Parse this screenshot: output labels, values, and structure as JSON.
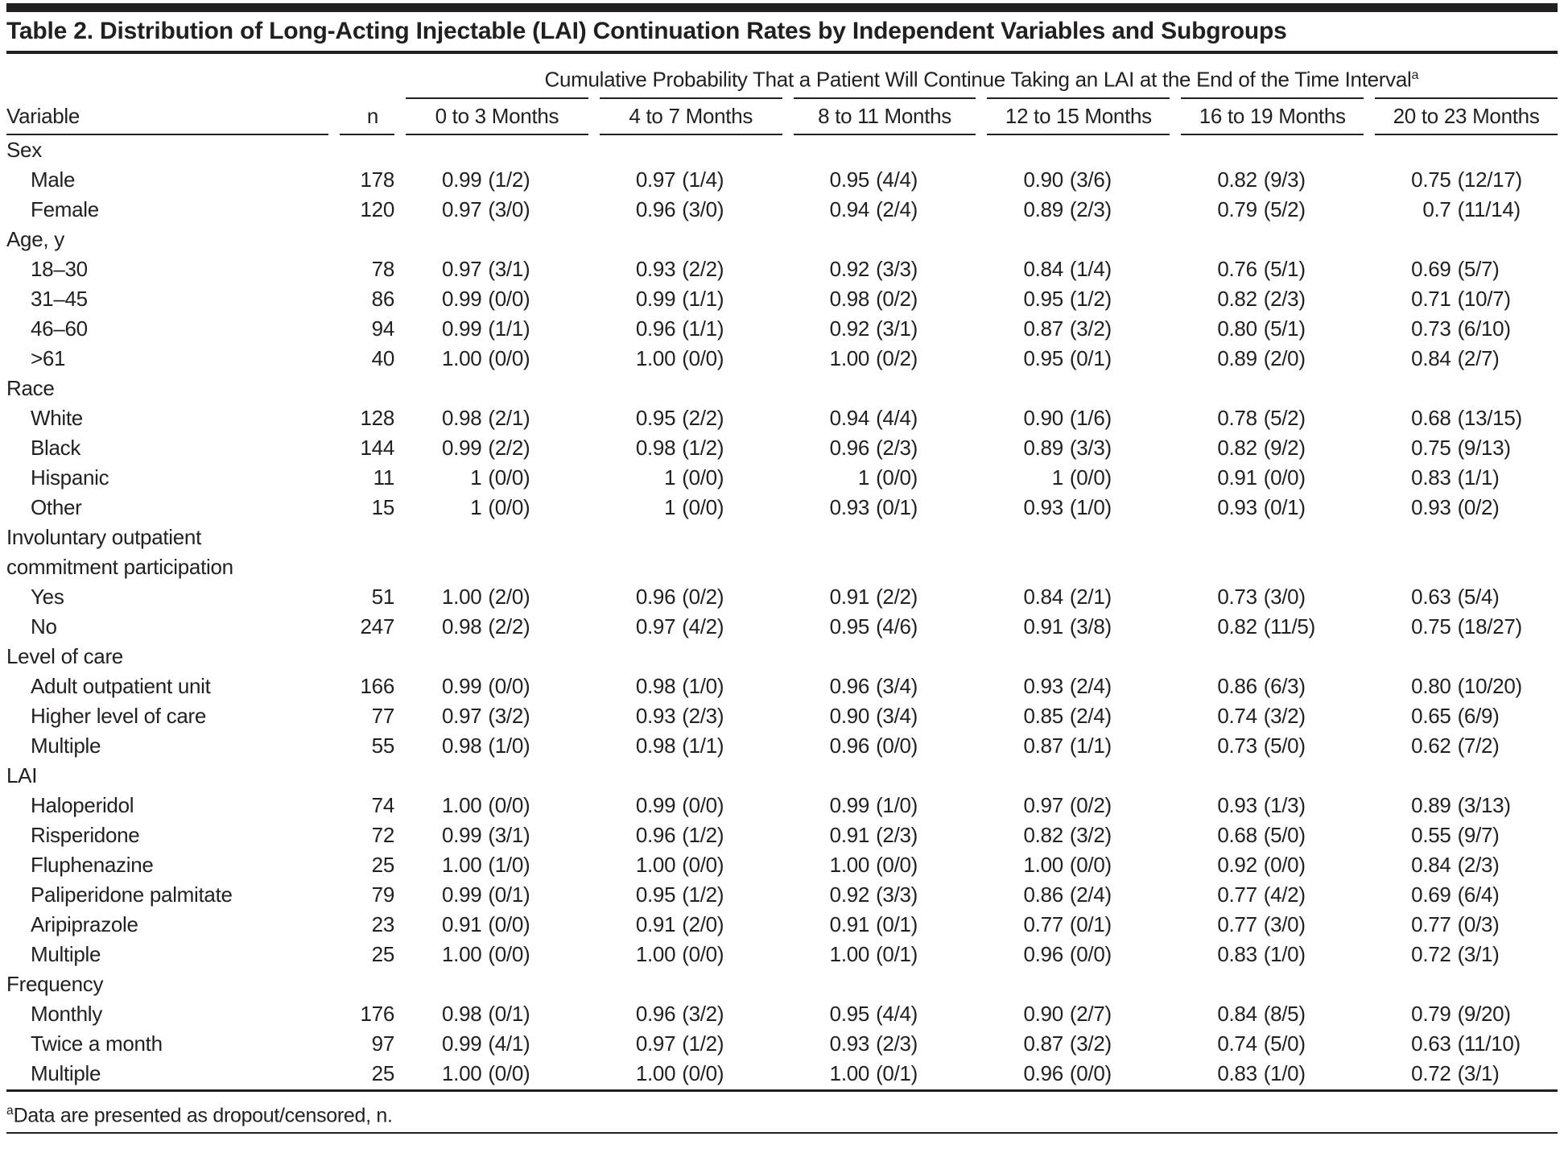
{
  "title": "Table 2. Distribution of Long-Acting Injectable (LAI) Continuation Rates by Independent Variables and Subgroups",
  "spanner": {
    "text": "Cumulative Probability That a Patient Will Continue Taking an LAI at the End of the Time Interval",
    "superscript": "a"
  },
  "columns": {
    "variable": "Variable",
    "n": "n",
    "months": [
      "0 to 3 Months",
      "4 to 7 Months",
      "8 to 11 Months",
      "12 to 15 Months",
      "16 to 19 Months",
      "20 to 23 Months"
    ]
  },
  "sections": [
    {
      "label": "Sex",
      "rows": [
        {
          "label": "Male",
          "n": "178",
          "cells": [
            [
              "0.99",
              "(1/2)"
            ],
            [
              "0.97",
              "(1/4)"
            ],
            [
              "0.95",
              "(4/4)"
            ],
            [
              "0.90",
              "(3/6)"
            ],
            [
              "0.82",
              "(9/3)"
            ],
            [
              "0.75",
              "(12/17)"
            ]
          ]
        },
        {
          "label": "Female",
          "n": "120",
          "cells": [
            [
              "0.97",
              "(3/0)"
            ],
            [
              "0.96",
              "(3/0)"
            ],
            [
              "0.94",
              "(2/4)"
            ],
            [
              "0.89",
              "(2/3)"
            ],
            [
              "0.79",
              "(5/2)"
            ],
            [
              "0.7",
              "(11/14)"
            ]
          ]
        }
      ]
    },
    {
      "label": "Age, y",
      "rows": [
        {
          "label": "18–30",
          "n": "78",
          "cells": [
            [
              "0.97",
              "(3/1)"
            ],
            [
              "0.93",
              "(2/2)"
            ],
            [
              "0.92",
              "(3/3)"
            ],
            [
              "0.84",
              "(1/4)"
            ],
            [
              "0.76",
              "(5/1)"
            ],
            [
              "0.69",
              "(5/7)"
            ]
          ]
        },
        {
          "label": "31–45",
          "n": "86",
          "cells": [
            [
              "0.99",
              "(0/0)"
            ],
            [
              "0.99",
              "(1/1)"
            ],
            [
              "0.98",
              "(0/2)"
            ],
            [
              "0.95",
              "(1/2)"
            ],
            [
              "0.82",
              "(2/3)"
            ],
            [
              "0.71",
              "(10/7)"
            ]
          ]
        },
        {
          "label": "46–60",
          "n": "94",
          "cells": [
            [
              "0.99",
              "(1/1)"
            ],
            [
              "0.96",
              "(1/1)"
            ],
            [
              "0.92",
              "(3/1)"
            ],
            [
              "0.87",
              "(3/2)"
            ],
            [
              "0.80",
              "(5/1)"
            ],
            [
              "0.73",
              "(6/10)"
            ]
          ]
        },
        {
          "label": ">61",
          "n": "40",
          "cells": [
            [
              "1.00",
              "(0/0)"
            ],
            [
              "1.00",
              "(0/0)"
            ],
            [
              "1.00",
              "(0/2)"
            ],
            [
              "0.95",
              "(0/1)"
            ],
            [
              "0.89",
              "(2/0)"
            ],
            [
              "0.84",
              "(2/7)"
            ]
          ]
        }
      ]
    },
    {
      "label": "Race",
      "rows": [
        {
          "label": "White",
          "n": "128",
          "cells": [
            [
              "0.98",
              "(2/1)"
            ],
            [
              "0.95",
              "(2/2)"
            ],
            [
              "0.94",
              "(4/4)"
            ],
            [
              "0.90",
              "(1/6)"
            ],
            [
              "0.78",
              "(5/2)"
            ],
            [
              "0.68",
              "(13/15)"
            ]
          ]
        },
        {
          "label": "Black",
          "n": "144",
          "cells": [
            [
              "0.99",
              "(2/2)"
            ],
            [
              "0.98",
              "(1/2)"
            ],
            [
              "0.96",
              "(2/3)"
            ],
            [
              "0.89",
              "(3/3)"
            ],
            [
              "0.82",
              "(9/2)"
            ],
            [
              "0.75",
              "(9/13)"
            ]
          ]
        },
        {
          "label": "Hispanic",
          "n": "11",
          "cells": [
            [
              "1",
              "(0/0)"
            ],
            [
              "1",
              "(0/0)"
            ],
            [
              "1",
              "(0/0)"
            ],
            [
              "1",
              "(0/0)"
            ],
            [
              "0.91",
              "(0/0)"
            ],
            [
              "0.83",
              "(1/1)"
            ]
          ]
        },
        {
          "label": "Other",
          "n": "15",
          "cells": [
            [
              "1",
              "(0/0)"
            ],
            [
              "1",
              "(0/0)"
            ],
            [
              "0.93",
              "(0/1)"
            ],
            [
              "0.93",
              "(1/0)"
            ],
            [
              "0.93",
              "(0/1)"
            ],
            [
              "0.93",
              "(0/2)"
            ]
          ]
        }
      ]
    },
    {
      "label": "Involuntary outpatient commitment participation",
      "rows": [
        {
          "label": "Yes",
          "n": "51",
          "cells": [
            [
              "1.00",
              "(2/0)"
            ],
            [
              "0.96",
              "(0/2)"
            ],
            [
              "0.91",
              "(2/2)"
            ],
            [
              "0.84",
              "(2/1)"
            ],
            [
              "0.73",
              "(3/0)"
            ],
            [
              "0.63",
              "(5/4)"
            ]
          ]
        },
        {
          "label": "No",
          "n": "247",
          "cells": [
            [
              "0.98",
              "(2/2)"
            ],
            [
              "0.97",
              "(4/2)"
            ],
            [
              "0.95",
              "(4/6)"
            ],
            [
              "0.91",
              "(3/8)"
            ],
            [
              "0.82",
              "(11/5)"
            ],
            [
              "0.75",
              "(18/27)"
            ]
          ]
        }
      ]
    },
    {
      "label": "Level of care",
      "rows": [
        {
          "label": "Adult outpatient unit",
          "n": "166",
          "cells": [
            [
              "0.99",
              "(0/0)"
            ],
            [
              "0.98",
              "(1/0)"
            ],
            [
              "0.96",
              "(3/4)"
            ],
            [
              "0.93",
              "(2/4)"
            ],
            [
              "0.86",
              "(6/3)"
            ],
            [
              "0.80",
              "(10/20)"
            ]
          ]
        },
        {
          "label": "Higher level of care",
          "n": "77",
          "cells": [
            [
              "0.97",
              "(3/2)"
            ],
            [
              "0.93",
              "(2/3)"
            ],
            [
              "0.90",
              "(3/4)"
            ],
            [
              "0.85",
              "(2/4)"
            ],
            [
              "0.74",
              "(3/2)"
            ],
            [
              "0.65",
              "(6/9)"
            ]
          ]
        },
        {
          "label": "Multiple",
          "n": "55",
          "cells": [
            [
              "0.98",
              "(1/0)"
            ],
            [
              "0.98",
              "(1/1)"
            ],
            [
              "0.96",
              "(0/0)"
            ],
            [
              "0.87",
              "(1/1)"
            ],
            [
              "0.73",
              "(5/0)"
            ],
            [
              "0.62",
              "(7/2)"
            ]
          ]
        }
      ]
    },
    {
      "label": "LAI",
      "rows": [
        {
          "label": "Haloperidol",
          "n": "74",
          "cells": [
            [
              "1.00",
              "(0/0)"
            ],
            [
              "0.99",
              "(0/0)"
            ],
            [
              "0.99",
              "(1/0)"
            ],
            [
              "0.97",
              "(0/2)"
            ],
            [
              "0.93",
              "(1/3)"
            ],
            [
              "0.89",
              "(3/13)"
            ]
          ]
        },
        {
          "label": "Risperidone",
          "n": "72",
          "cells": [
            [
              "0.99",
              "(3/1)"
            ],
            [
              "0.96",
              "(1/2)"
            ],
            [
              "0.91",
              "(2/3)"
            ],
            [
              "0.82",
              "(3/2)"
            ],
            [
              "0.68",
              "(5/0)"
            ],
            [
              "0.55",
              "(9/7)"
            ]
          ]
        },
        {
          "label": "Fluphenazine",
          "n": "25",
          "cells": [
            [
              "1.00",
              "(1/0)"
            ],
            [
              "1.00",
              "(0/0)"
            ],
            [
              "1.00",
              "(0/0)"
            ],
            [
              "1.00",
              "(0/0)"
            ],
            [
              "0.92",
              "(0/0)"
            ],
            [
              "0.84",
              "(2/3)"
            ]
          ]
        },
        {
          "label": "Paliperidone palmitate",
          "n": "79",
          "cells": [
            [
              "0.99",
              "(0/1)"
            ],
            [
              "0.95",
              "(1/2)"
            ],
            [
              "0.92",
              "(3/3)"
            ],
            [
              "0.86",
              "(2/4)"
            ],
            [
              "0.77",
              "(4/2)"
            ],
            [
              "0.69",
              "(6/4)"
            ]
          ]
        },
        {
          "label": "Aripiprazole",
          "n": "23",
          "cells": [
            [
              "0.91",
              "(0/0)"
            ],
            [
              "0.91",
              "(2/0)"
            ],
            [
              "0.91",
              "(0/1)"
            ],
            [
              "0.77",
              "(0/1)"
            ],
            [
              "0.77",
              "(3/0)"
            ],
            [
              "0.77",
              "(0/3)"
            ]
          ]
        },
        {
          "label": "Multiple",
          "n": "25",
          "cells": [
            [
              "1.00",
              "(0/0)"
            ],
            [
              "1.00",
              "(0/0)"
            ],
            [
              "1.00",
              "(0/1)"
            ],
            [
              "0.96",
              "(0/0)"
            ],
            [
              "0.83",
              "(1/0)"
            ],
            [
              "0.72",
              "(3/1)"
            ]
          ]
        }
      ]
    },
    {
      "label": "Frequency",
      "rows": [
        {
          "label": "Monthly",
          "n": "176",
          "cells": [
            [
              "0.98",
              "(0/1)"
            ],
            [
              "0.96",
              "(3/2)"
            ],
            [
              "0.95",
              "(4/4)"
            ],
            [
              "0.90",
              "(2/7)"
            ],
            [
              "0.84",
              "(8/5)"
            ],
            [
              "0.79",
              "(9/20)"
            ]
          ]
        },
        {
          "label": "Twice a month",
          "n": "97",
          "cells": [
            [
              "0.99",
              "(4/1)"
            ],
            [
              "0.97",
              "(1/2)"
            ],
            [
              "0.93",
              "(2/3)"
            ],
            [
              "0.87",
              "(3/2)"
            ],
            [
              "0.74",
              "(5/0)"
            ],
            [
              "0.63",
              "(11/10)"
            ]
          ]
        },
        {
          "label": "Multiple",
          "n": "25",
          "cells": [
            [
              "1.00",
              "(0/0)"
            ],
            [
              "1.00",
              "(0/0)"
            ],
            [
              "1.00",
              "(0/1)"
            ],
            [
              "0.96",
              "(0/0)"
            ],
            [
              "0.83",
              "(1/0)"
            ],
            [
              "0.72",
              "(3/1)"
            ]
          ]
        }
      ]
    }
  ],
  "footnote": {
    "superscript": "a",
    "text": "Data are presented as dropout/censored, n."
  },
  "colors": {
    "ink": "#231f20",
    "background": "#ffffff"
  }
}
